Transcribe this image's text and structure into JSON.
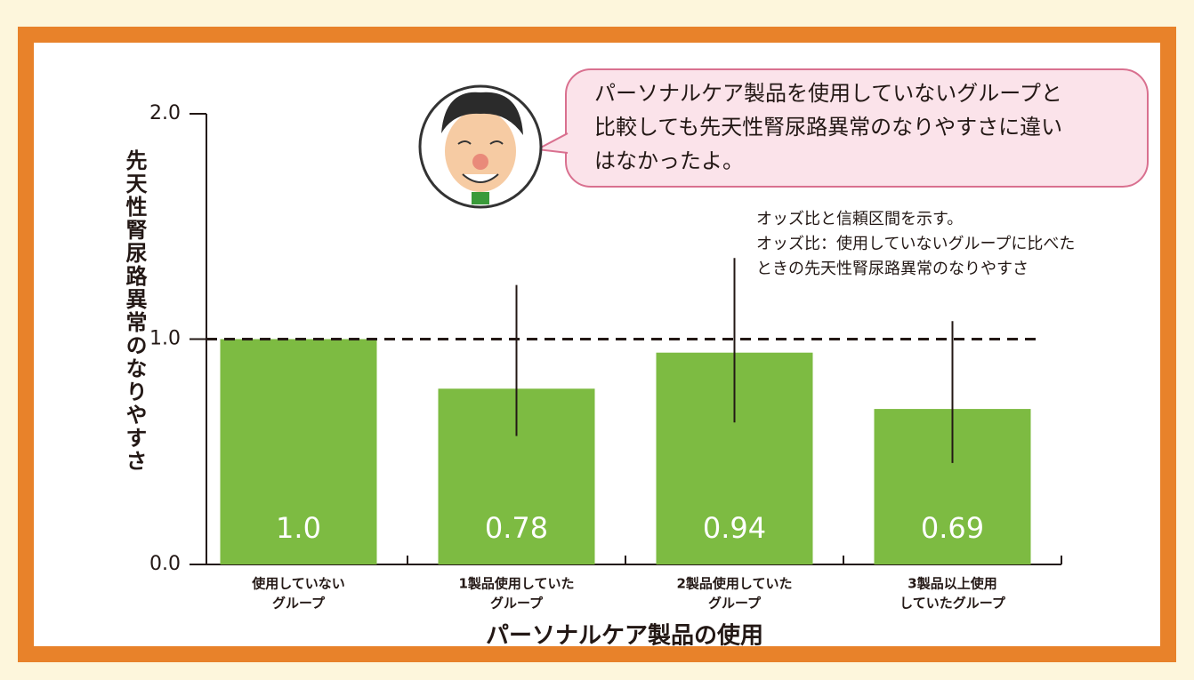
{
  "chart_data": {
    "type": "bar",
    "y_label": "先天性腎尿路異常のなりやすさ",
    "x_label": "パーソナルケア製品の使用",
    "categories": [
      [
        "使用していない",
        "グループ"
      ],
      [
        "1製品使用していた",
        "グループ"
      ],
      [
        "2製品使用していた",
        "グループ"
      ],
      [
        "3製品以上使用",
        "していたグループ"
      ]
    ],
    "values": [
      1,
      0.78,
      0.94,
      0.69
    ],
    "value_labels": [
      "1.0",
      "0.78",
      "0.94",
      "0.69"
    ],
    "ci_low": [
      null,
      0.57,
      0.63,
      0.45
    ],
    "ci_high": [
      null,
      1.24,
      1.36,
      1.08
    ],
    "color": "#7dbb42",
    "reference_line": 1,
    "ylim": [
      0,
      2
    ],
    "yticks": [
      {
        "value": 0,
        "label": "0.0"
      },
      {
        "value": 1,
        "label": "1.0"
      },
      {
        "value": 2,
        "label": "2.0"
      }
    ],
    "speech": [
      "パーソナルケア製品を使用していないグループと",
      "比較しても先天性腎尿路異常のなりやすさに違い",
      "はなかったよ。"
    ],
    "annotation": [
      "オッズ比と信頼区間を示す。",
      "オッズ比：使用していないグループに比べた",
      "ときの先天性腎尿路異常のなりやすさ"
    ]
  }
}
